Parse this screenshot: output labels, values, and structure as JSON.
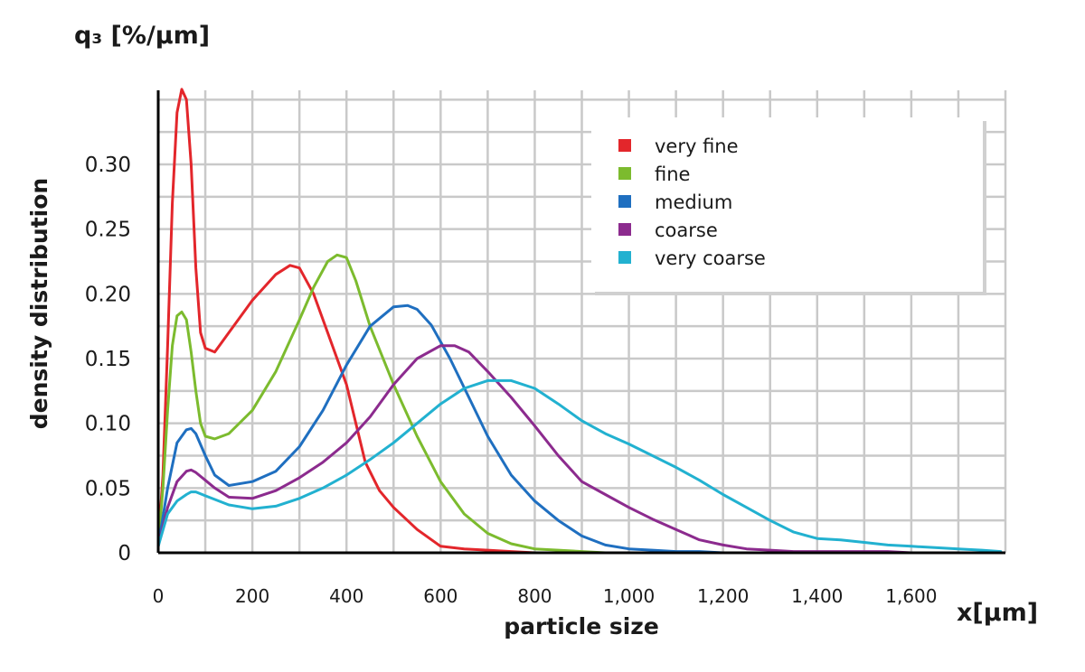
{
  "chart_data": {
    "type": "line",
    "y_unit_label": "q₃ [%/µm]",
    "x_unit_label": "x[µm]",
    "xlabel": "particle size",
    "ylabel": "density distribution",
    "xlim": [
      0,
      1800
    ],
    "ylim": [
      0,
      0.35
    ],
    "grid": true,
    "legend_position": "top-right",
    "x_ticks": [
      0,
      200,
      400,
      600,
      800,
      1000,
      1200,
      1400,
      1600
    ],
    "x_tick_labels": [
      "0",
      "200",
      "400",
      "600",
      "800",
      "1,000",
      "1,200",
      "1,400",
      "1,600"
    ],
    "y_ticks": [
      0,
      0.05,
      0.1,
      0.15,
      0.2,
      0.25,
      0.3
    ],
    "y_tick_labels": [
      "0",
      "0.05",
      "0.10",
      "0.15",
      "0.20",
      "0.25",
      "0.30"
    ],
    "series": [
      {
        "name": "very fine",
        "color": "#e3262b",
        "x": [
          0,
          10,
          20,
          30,
          40,
          50,
          60,
          70,
          80,
          90,
          100,
          120,
          150,
          200,
          250,
          280,
          300,
          330,
          360,
          400,
          440,
          470,
          500,
          550,
          600,
          650,
          700,
          750,
          800
        ],
        "y": [
          0.005,
          0.06,
          0.16,
          0.27,
          0.34,
          0.358,
          0.35,
          0.3,
          0.22,
          0.17,
          0.158,
          0.155,
          0.17,
          0.195,
          0.215,
          0.222,
          0.22,
          0.2,
          0.17,
          0.13,
          0.07,
          0.048,
          0.035,
          0.018,
          0.005,
          0.003,
          0.002,
          0.001,
          0
        ]
      },
      {
        "name": "fine",
        "color": "#7cbb2e",
        "x": [
          0,
          10,
          20,
          30,
          40,
          50,
          60,
          70,
          80,
          90,
          100,
          120,
          150,
          200,
          250,
          300,
          330,
          360,
          380,
          400,
          420,
          450,
          500,
          550,
          600,
          650,
          700,
          750,
          800,
          850,
          900,
          950,
          960
        ],
        "y": [
          0.005,
          0.05,
          0.11,
          0.16,
          0.183,
          0.186,
          0.18,
          0.155,
          0.125,
          0.1,
          0.09,
          0.088,
          0.092,
          0.11,
          0.14,
          0.18,
          0.205,
          0.225,
          0.23,
          0.228,
          0.21,
          0.175,
          0.13,
          0.09,
          0.055,
          0.03,
          0.015,
          0.007,
          0.003,
          0.002,
          0.001,
          0,
          0
        ]
      },
      {
        "name": "medium",
        "color": "#1f6fc0",
        "x": [
          0,
          20,
          40,
          60,
          70,
          80,
          100,
          120,
          150,
          200,
          250,
          300,
          350,
          400,
          450,
          500,
          530,
          550,
          580,
          620,
          660,
          700,
          750,
          800,
          850,
          900,
          950,
          1000,
          1050,
          1100,
          1150,
          1200
        ],
        "y": [
          0.005,
          0.05,
          0.085,
          0.095,
          0.096,
          0.092,
          0.075,
          0.06,
          0.052,
          0.055,
          0.063,
          0.082,
          0.11,
          0.145,
          0.175,
          0.19,
          0.191,
          0.188,
          0.176,
          0.15,
          0.12,
          0.09,
          0.06,
          0.04,
          0.025,
          0.013,
          0.006,
          0.003,
          0.002,
          0.001,
          0.001,
          0
        ]
      },
      {
        "name": "coarse",
        "color": "#8c2b8e",
        "x": [
          0,
          20,
          40,
          60,
          70,
          80,
          100,
          120,
          150,
          200,
          250,
          300,
          350,
          400,
          450,
          500,
          550,
          600,
          630,
          660,
          700,
          750,
          800,
          850,
          900,
          950,
          1000,
          1050,
          1100,
          1150,
          1200,
          1250,
          1300,
          1350,
          1400,
          1450,
          1500,
          1550,
          1600
        ],
        "y": [
          0.005,
          0.035,
          0.055,
          0.063,
          0.064,
          0.062,
          0.056,
          0.05,
          0.043,
          0.042,
          0.048,
          0.058,
          0.07,
          0.085,
          0.105,
          0.13,
          0.15,
          0.16,
          0.16,
          0.155,
          0.14,
          0.12,
          0.098,
          0.075,
          0.055,
          0.045,
          0.035,
          0.026,
          0.018,
          0.01,
          0.006,
          0.003,
          0.002,
          0.001,
          0.001,
          0.001,
          0.001,
          0.001,
          0
        ]
      },
      {
        "name": "very coarse",
        "color": "#22b1d0",
        "x": [
          0,
          20,
          40,
          60,
          70,
          80,
          100,
          150,
          200,
          250,
          300,
          350,
          400,
          450,
          500,
          550,
          600,
          650,
          700,
          750,
          800,
          850,
          900,
          950,
          1000,
          1050,
          1100,
          1150,
          1200,
          1250,
          1300,
          1350,
          1400,
          1450,
          1500,
          1550,
          1600,
          1650,
          1700,
          1750,
          1790
        ],
        "y": [
          0.005,
          0.03,
          0.04,
          0.045,
          0.047,
          0.047,
          0.044,
          0.037,
          0.034,
          0.036,
          0.042,
          0.05,
          0.06,
          0.072,
          0.085,
          0.1,
          0.115,
          0.127,
          0.133,
          0.133,
          0.127,
          0.115,
          0.102,
          0.092,
          0.084,
          0.075,
          0.066,
          0.056,
          0.045,
          0.035,
          0.025,
          0.016,
          0.011,
          0.01,
          0.008,
          0.006,
          0.005,
          0.004,
          0.003,
          0.002,
          0.001
        ]
      }
    ]
  }
}
